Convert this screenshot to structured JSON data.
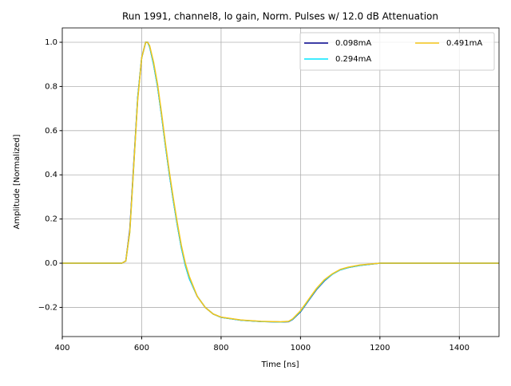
{
  "chart_data": {
    "type": "line",
    "title": "Run 1991, channel8, lo gain, Norm. Pulses w/ 12.0 dB Attenuation",
    "x_label": "Time [ns]",
    "y_label": "Amplitude [Normalized]",
    "x": [
      400,
      450,
      500,
      550,
      560,
      570,
      580,
      590,
      600,
      610,
      615,
      620,
      630,
      640,
      650,
      660,
      670,
      680,
      690,
      700,
      710,
      720,
      740,
      760,
      780,
      800,
      850,
      900,
      950,
      970,
      980,
      1000,
      1020,
      1040,
      1060,
      1080,
      1100,
      1120,
      1150,
      1200,
      1250,
      1300,
      1350,
      1400,
      1450,
      1500
    ],
    "series": [
      {
        "name": "0.098mA",
        "color": "#00008b",
        "values": [
          0.0,
          0.0,
          0.0,
          0.0,
          0.01,
          0.15,
          0.45,
          0.75,
          0.93,
          1.0,
          1.0,
          0.98,
          0.9,
          0.8,
          0.67,
          0.53,
          0.4,
          0.28,
          0.17,
          0.07,
          -0.01,
          -0.07,
          -0.15,
          -0.2,
          -0.23,
          -0.245,
          -0.258,
          -0.264,
          -0.266,
          -0.265,
          -0.255,
          -0.22,
          -0.17,
          -0.12,
          -0.08,
          -0.05,
          -0.03,
          -0.02,
          -0.01,
          0.0,
          0.0,
          0.0,
          0.0,
          0.0,
          0.0,
          0.0
        ]
      },
      {
        "name": "0.294mA",
        "color": "#00e5ff",
        "values": [
          0.0,
          0.0,
          0.0,
          0.0,
          0.01,
          0.14,
          0.44,
          0.75,
          0.93,
          1.0,
          1.0,
          0.98,
          0.9,
          0.8,
          0.67,
          0.53,
          0.4,
          0.28,
          0.17,
          0.07,
          -0.01,
          -0.07,
          -0.15,
          -0.2,
          -0.23,
          -0.245,
          -0.258,
          -0.264,
          -0.266,
          -0.264,
          -0.254,
          -0.218,
          -0.168,
          -0.118,
          -0.078,
          -0.05,
          -0.03,
          -0.02,
          -0.01,
          0.0,
          0.0,
          0.0,
          0.0,
          0.0,
          0.0,
          0.0
        ]
      },
      {
        "name": "0.491mA",
        "color": "#f5c518",
        "values": [
          0.0,
          0.0,
          0.0,
          0.0,
          0.01,
          0.14,
          0.44,
          0.74,
          0.93,
          1.0,
          1.0,
          0.985,
          0.91,
          0.81,
          0.68,
          0.54,
          0.41,
          0.29,
          0.18,
          0.08,
          0.0,
          -0.06,
          -0.15,
          -0.2,
          -0.23,
          -0.244,
          -0.257,
          -0.263,
          -0.265,
          -0.263,
          -0.252,
          -0.215,
          -0.165,
          -0.115,
          -0.075,
          -0.048,
          -0.028,
          -0.018,
          -0.008,
          0.0,
          0.0,
          0.0,
          0.0,
          0.0,
          0.0,
          0.0
        ]
      }
    ],
    "xlim": [
      400,
      1500
    ],
    "xticks": [
      400,
      600,
      800,
      1000,
      1200,
      1400
    ],
    "ylim": [
      -0.332,
      1.065
    ],
    "yticks": [
      {
        "value": -0.2,
        "label": "−0.2"
      },
      {
        "value": 0,
        "label": "0.0"
      },
      0.2,
      0.4,
      0.6,
      0.8,
      {
        "value": 1,
        "label": "1.0"
      }
    ],
    "grid": true,
    "legend": "upper right"
  }
}
